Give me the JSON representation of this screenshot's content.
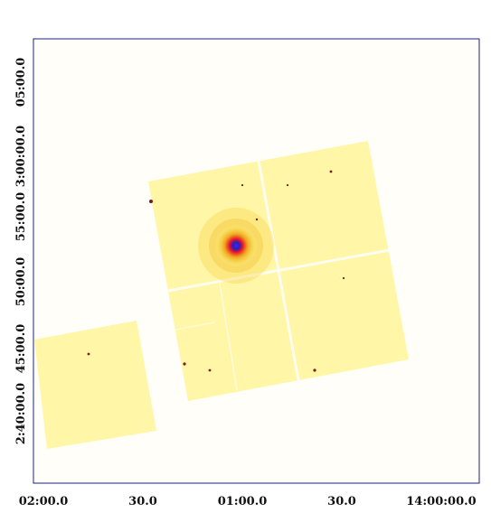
{
  "image": {
    "axes": {
      "x_tick_labels": [
        "02:00.0",
        "30.0",
        "01:00.0",
        "30.0",
        "14:00:00.0"
      ],
      "y_tick_labels": [
        "05:00.0",
        "3:00:00.0",
        "55:00.0",
        "50:00.0",
        "45:00.0",
        "2:40:00.0"
      ]
    },
    "colors": {
      "background": "#ffffff",
      "plot_background": "#fffef8",
      "frame": "#1a237e",
      "detector_fill": "#fff7b3",
      "detector_noise": "#f3e46b",
      "source_core": "#2a1fbf",
      "source_mid": "#e8102a",
      "source_halo": "#f0a21e"
    },
    "source_icon": "bright-point-source"
  }
}
